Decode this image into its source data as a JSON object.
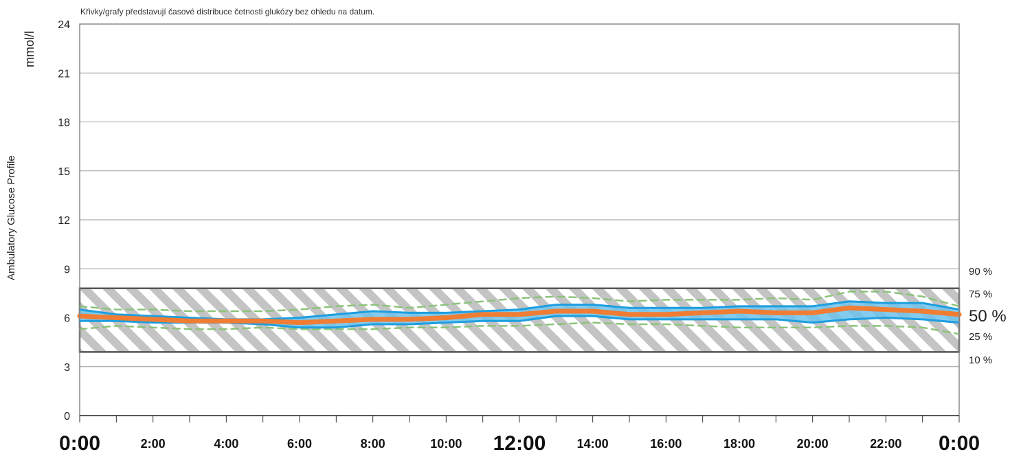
{
  "note": "Křivky/grafy představují časové distribuce četnosti glukózy bez ohledu na datum.",
  "chart_data": {
    "type": "line",
    "title": "",
    "ylabel": "mmol/l",
    "side_label": "Ambulatory Glucose Profile",
    "ylim": [
      0,
      24
    ],
    "yticks": [
      "0",
      "3",
      "6",
      "9",
      "12",
      "15",
      "18",
      "21",
      "24"
    ],
    "xlim": [
      0,
      24
    ],
    "xticks": [
      {
        "label": "0:00",
        "big": true
      },
      {
        "label": "2:00",
        "big": false
      },
      {
        "label": "4:00",
        "big": false
      },
      {
        "label": "6:00",
        "big": false
      },
      {
        "label": "8:00",
        "big": false
      },
      {
        "label": "10:00",
        "big": false
      },
      {
        "label": "12:00",
        "big": true
      },
      {
        "label": "14:00",
        "big": false
      },
      {
        "label": "16:00",
        "big": false
      },
      {
        "label": "18:00",
        "big": false
      },
      {
        "label": "20:00",
        "big": false
      },
      {
        "label": "22:00",
        "big": false
      },
      {
        "label": "0:00",
        "big": true
      }
    ],
    "target_range": [
      3.9,
      7.8
    ],
    "x": [
      0,
      1,
      2,
      3,
      4,
      5,
      6,
      7,
      8,
      9,
      10,
      11,
      12,
      13,
      14,
      15,
      16,
      17,
      18,
      19,
      20,
      21,
      22,
      23,
      24
    ],
    "series": [
      {
        "name": "90 %",
        "style": "dashed",
        "color": "#8cc37a",
        "values": [
          6.7,
          6.5,
          6.5,
          6.4,
          6.4,
          6.4,
          6.5,
          6.7,
          6.8,
          6.6,
          6.8,
          7.0,
          7.2,
          7.3,
          7.2,
          7.0,
          7.1,
          7.1,
          7.1,
          7.2,
          7.1,
          7.6,
          7.6,
          7.3,
          6.7
        ]
      },
      {
        "name": "75 %",
        "style": "solid",
        "color": "#1e9ee0",
        "values": [
          6.5,
          6.2,
          6.1,
          6.0,
          5.9,
          5.9,
          6.0,
          6.2,
          6.4,
          6.3,
          6.3,
          6.4,
          6.5,
          6.8,
          6.8,
          6.6,
          6.6,
          6.6,
          6.7,
          6.7,
          6.7,
          7.0,
          6.9,
          6.9,
          6.5
        ]
      },
      {
        "name": "50 %",
        "style": "solid",
        "color": "#f07d33",
        "values": [
          6.1,
          6.0,
          5.9,
          5.8,
          5.8,
          5.8,
          5.7,
          5.8,
          5.9,
          5.9,
          6.0,
          6.2,
          6.2,
          6.4,
          6.4,
          6.2,
          6.2,
          6.3,
          6.4,
          6.3,
          6.3,
          6.6,
          6.5,
          6.4,
          6.2
        ]
      },
      {
        "name": "25 %",
        "style": "solid",
        "color": "#1e9ee0",
        "values": [
          5.8,
          5.8,
          5.7,
          5.7,
          5.7,
          5.6,
          5.4,
          5.4,
          5.6,
          5.6,
          5.7,
          5.8,
          5.8,
          6.1,
          6.1,
          5.9,
          5.9,
          5.9,
          5.9,
          5.9,
          5.7,
          5.9,
          6.0,
          5.9,
          5.7
        ]
      },
      {
        "name": "10 %",
        "style": "dashed",
        "color": "#8cc37a",
        "values": [
          5.3,
          5.5,
          5.4,
          5.3,
          5.3,
          5.4,
          5.3,
          5.3,
          5.3,
          5.4,
          5.4,
          5.5,
          5.5,
          5.6,
          5.7,
          5.6,
          5.6,
          5.5,
          5.4,
          5.4,
          5.4,
          5.5,
          5.5,
          5.4,
          5.0
        ]
      }
    ],
    "grid": true,
    "colors": {
      "band": "#6ec3ec",
      "stripe": "#c4c4c4",
      "target_border": "#555555"
    }
  }
}
